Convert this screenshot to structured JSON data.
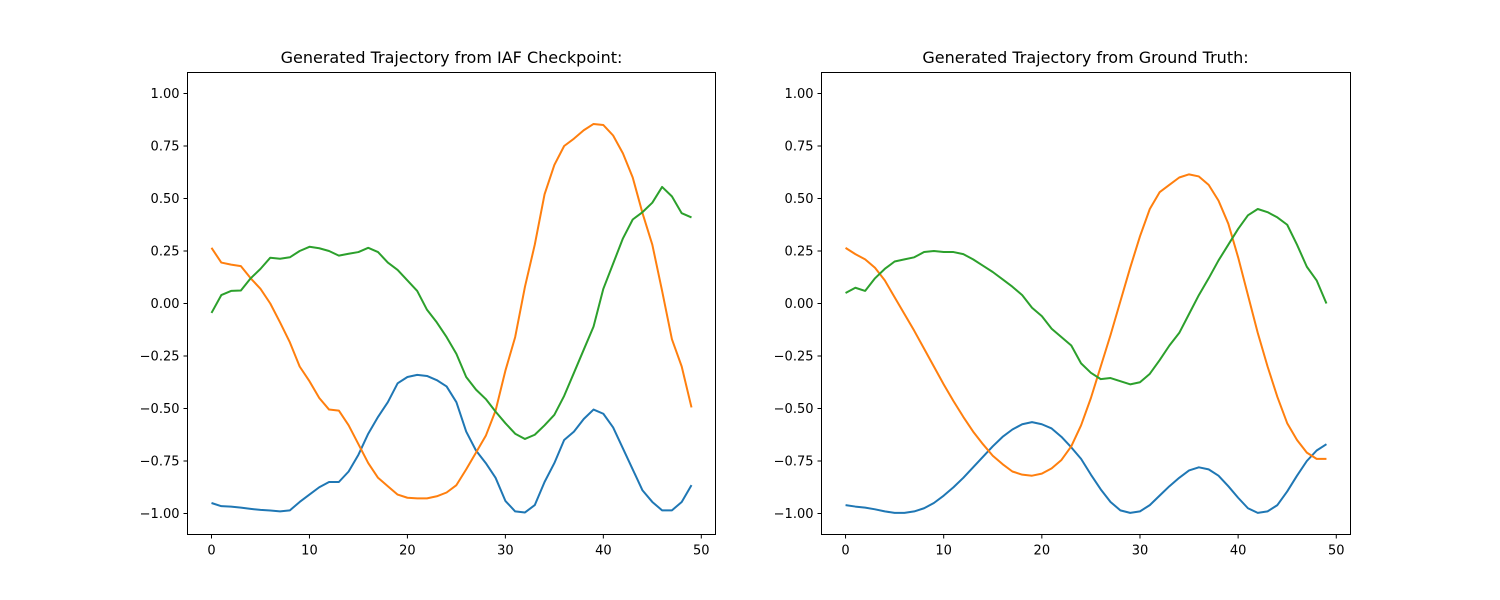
{
  "chart_data": [
    {
      "type": "line",
      "title": "Generated Trajectory from IAF Checkpoint:",
      "xlabel": "",
      "ylabel": "",
      "xlim": [
        -2.45,
        51.45
      ],
      "ylim": [
        -1.1,
        1.1
      ],
      "xticks": [
        0,
        10,
        20,
        30,
        40,
        50
      ],
      "yticks": [
        -1.0,
        -0.75,
        -0.5,
        -0.25,
        0.0,
        0.25,
        0.5,
        0.75,
        1.0
      ],
      "ytick_labels": [
        "−1.00",
        "−0.75",
        "−0.50",
        "−0.25",
        "0.00",
        "0.25",
        "0.50",
        "0.75",
        "1.00"
      ],
      "xtick_labels": [
        "0",
        "10",
        "20",
        "30",
        "40",
        "50"
      ],
      "grid": false,
      "series": [
        {
          "color": "#1f77b4",
          "values": [
            -0.95,
            -0.965,
            -0.967,
            -0.972,
            -0.978,
            -0.983,
            -0.986,
            -0.99,
            -0.985,
            -0.945,
            -0.91,
            -0.875,
            -0.85,
            -0.85,
            -0.8,
            -0.72,
            -0.62,
            -0.54,
            -0.47,
            -0.38,
            -0.35,
            -0.34,
            -0.345,
            -0.365,
            -0.395,
            -0.47,
            -0.61,
            -0.7,
            -0.76,
            -0.83,
            -0.94,
            -0.99,
            -0.995,
            -0.96,
            -0.85,
            -0.76,
            -0.65,
            -0.61,
            -0.55,
            -0.505,
            -0.525,
            -0.59,
            -0.69,
            -0.79,
            -0.89,
            -0.945,
            -0.985,
            -0.985,
            -0.945,
            -0.865
          ]
        },
        {
          "color": "#ff7f0e",
          "values": [
            0.265,
            0.195,
            0.185,
            0.178,
            0.12,
            0.07,
            0.0,
            -0.09,
            -0.185,
            -0.3,
            -0.37,
            -0.45,
            -0.505,
            -0.51,
            -0.58,
            -0.67,
            -0.76,
            -0.83,
            -0.87,
            -0.91,
            -0.925,
            -0.928,
            -0.928,
            -0.918,
            -0.9,
            -0.865,
            -0.79,
            -0.71,
            -0.63,
            -0.51,
            -0.32,
            -0.16,
            0.08,
            0.28,
            0.52,
            0.66,
            0.75,
            0.785,
            0.825,
            0.855,
            0.85,
            0.8,
            0.715,
            0.6,
            0.43,
            0.28,
            0.06,
            -0.17,
            -0.3,
            -0.495
          ]
        },
        {
          "color": "#2ca02c",
          "values": [
            -0.045,
            0.04,
            0.06,
            0.062,
            0.12,
            0.165,
            0.218,
            0.213,
            0.22,
            0.25,
            0.27,
            0.263,
            0.25,
            0.228,
            0.237,
            0.245,
            0.265,
            0.245,
            0.195,
            0.16,
            0.11,
            0.06,
            -0.03,
            -0.09,
            -0.16,
            -0.24,
            -0.35,
            -0.41,
            -0.455,
            -0.515,
            -0.57,
            -0.62,
            -0.645,
            -0.625,
            -0.58,
            -0.53,
            -0.44,
            -0.33,
            -0.22,
            -0.11,
            0.07,
            0.19,
            0.31,
            0.4,
            0.435,
            0.48,
            0.555,
            0.51,
            0.43,
            0.41
          ]
        }
      ]
    },
    {
      "type": "line",
      "title": "Generated Trajectory from Ground Truth:",
      "xlabel": "",
      "ylabel": "",
      "xlim": [
        -2.45,
        51.45
      ],
      "ylim": [
        -1.1,
        1.1
      ],
      "xticks": [
        0,
        10,
        20,
        30,
        40,
        50
      ],
      "yticks": [
        -1.0,
        -0.75,
        -0.5,
        -0.25,
        0.0,
        0.25,
        0.5,
        0.75,
        1.0
      ],
      "ytick_labels": [
        "−1.00",
        "−0.75",
        "−0.50",
        "−0.25",
        "0.00",
        "0.25",
        "0.50",
        "0.75",
        "1.00"
      ],
      "xtick_labels": [
        "0",
        "10",
        "20",
        "30",
        "40",
        "50"
      ],
      "grid": false,
      "series": [
        {
          "color": "#1f77b4",
          "values": [
            -0.96,
            -0.967,
            -0.972,
            -0.98,
            -0.99,
            -0.997,
            -0.997,
            -0.99,
            -0.975,
            -0.95,
            -0.915,
            -0.875,
            -0.83,
            -0.78,
            -0.73,
            -0.68,
            -0.635,
            -0.6,
            -0.575,
            -0.565,
            -0.575,
            -0.595,
            -0.635,
            -0.685,
            -0.74,
            -0.815,
            -0.885,
            -0.945,
            -0.985,
            -0.997,
            -0.99,
            -0.96,
            -0.915,
            -0.87,
            -0.83,
            -0.795,
            -0.78,
            -0.79,
            -0.82,
            -0.87,
            -0.925,
            -0.975,
            -0.997,
            -0.99,
            -0.96,
            -0.895,
            -0.82,
            -0.75,
            -0.7,
            -0.67
          ]
        },
        {
          "color": "#ff7f0e",
          "values": [
            0.265,
            0.235,
            0.21,
            0.17,
            0.11,
            0.03,
            -0.05,
            -0.13,
            -0.215,
            -0.3,
            -0.385,
            -0.465,
            -0.54,
            -0.61,
            -0.67,
            -0.725,
            -0.765,
            -0.8,
            -0.815,
            -0.82,
            -0.81,
            -0.785,
            -0.745,
            -0.68,
            -0.58,
            -0.45,
            -0.3,
            -0.15,
            0.01,
            0.17,
            0.32,
            0.45,
            0.53,
            0.565,
            0.6,
            0.615,
            0.605,
            0.565,
            0.49,
            0.38,
            0.22,
            0.04,
            -0.14,
            -0.3,
            -0.445,
            -0.57,
            -0.65,
            -0.71,
            -0.74,
            -0.74
          ]
        },
        {
          "color": "#2ca02c",
          "values": [
            0.05,
            0.075,
            0.06,
            0.12,
            0.165,
            0.2,
            0.21,
            0.22,
            0.245,
            0.25,
            0.245,
            0.245,
            0.235,
            0.21,
            0.18,
            0.15,
            0.115,
            0.08,
            0.04,
            -0.02,
            -0.06,
            -0.12,
            -0.16,
            -0.2,
            -0.285,
            -0.33,
            -0.36,
            -0.355,
            -0.37,
            -0.385,
            -0.375,
            -0.335,
            -0.27,
            -0.2,
            -0.14,
            -0.05,
            0.04,
            0.12,
            0.205,
            0.28,
            0.355,
            0.42,
            0.45,
            0.435,
            0.41,
            0.375,
            0.28,
            0.175,
            0.11,
            0.0
          ]
        }
      ]
    }
  ]
}
